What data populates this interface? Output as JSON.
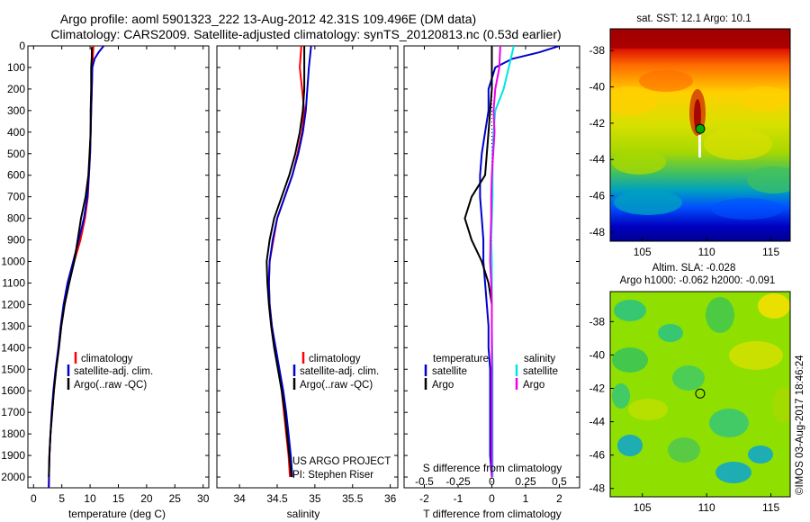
{
  "header": {
    "title_line1": "Argo profile: aoml 5901323_222 13-Aug-2012 42.31S 109.496E (DM data)",
    "title_line2": "Climatology: CARS2009. Satellite-adjusted climatology: synTS_20120813.nc (0.53d earlier)"
  },
  "footer": {
    "project": "US ARGO PROJECT",
    "pi": "PI: Stephen Riser",
    "stamp": "©IMOS 03-Aug-2017 18:46:24"
  },
  "colors": {
    "climatology": "#ff0000",
    "satellite": "#0000cc",
    "argo": "#000000",
    "satellite_salinity": "#00e5e5",
    "argo_salinity": "#ee00ee",
    "marker": "#00aa00"
  },
  "chart_data": [
    {
      "id": "temperature",
      "type": "line",
      "xlabel": "temperature (deg C)",
      "xlim": [
        -1,
        31
      ],
      "xticks": [
        0,
        5,
        10,
        15,
        20,
        25,
        30
      ],
      "ylim": [
        2050,
        0
      ],
      "yticks": [
        0,
        100,
        200,
        300,
        400,
        500,
        600,
        700,
        800,
        900,
        1000,
        1100,
        1200,
        1300,
        1400,
        1500,
        1600,
        1700,
        1800,
        1900,
        2000
      ],
      "legend": [
        "climatology",
        "satellite-adj. clim.",
        "Argo(..raw -QC)"
      ],
      "legend_position": "lower-right",
      "series": [
        {
          "name": "climatology",
          "color_key": "climatology",
          "points": [
            [
              10.6,
              0
            ],
            [
              10.5,
              50
            ],
            [
              10.4,
              100
            ],
            [
              10.3,
              200
            ],
            [
              10.2,
              300
            ],
            [
              10.1,
              400
            ],
            [
              10.0,
              500
            ],
            [
              9.8,
              600
            ],
            [
              9.6,
              700
            ],
            [
              9.1,
              800
            ],
            [
              8.3,
              900
            ],
            [
              7.2,
              1000
            ],
            [
              6.2,
              1100
            ],
            [
              5.5,
              1200
            ],
            [
              4.9,
              1300
            ],
            [
              4.5,
              1400
            ],
            [
              4.0,
              1500
            ],
            [
              3.6,
              1600
            ],
            [
              3.3,
              1700
            ],
            [
              3.0,
              1800
            ],
            [
              2.8,
              1900
            ],
            [
              2.7,
              2050
            ]
          ]
        },
        {
          "name": "satellite-adj. clim.",
          "color_key": "satellite",
          "points": [
            [
              12.4,
              0
            ],
            [
              11.5,
              30
            ],
            [
              10.8,
              60
            ],
            [
              10.4,
              100
            ],
            [
              10.3,
              200
            ],
            [
              10.2,
              300
            ],
            [
              10.1,
              400
            ],
            [
              10.0,
              500
            ],
            [
              9.8,
              600
            ],
            [
              9.5,
              700
            ],
            [
              8.9,
              800
            ],
            [
              8.0,
              900
            ],
            [
              7.0,
              1000
            ],
            [
              6.0,
              1100
            ],
            [
              5.3,
              1200
            ],
            [
              4.8,
              1300
            ],
            [
              4.4,
              1400
            ],
            [
              3.9,
              1500
            ],
            [
              3.5,
              1600
            ],
            [
              3.2,
              1700
            ],
            [
              3.0,
              1800
            ],
            [
              2.8,
              1900
            ],
            [
              2.7,
              2050
            ]
          ]
        },
        {
          "name": "Argo(..raw -QC)",
          "color_key": "argo",
          "points": [
            [
              10.3,
              5
            ],
            [
              10.3,
              50
            ],
            [
              10.2,
              100
            ],
            [
              10.2,
              200
            ],
            [
              10.1,
              300
            ],
            [
              10.1,
              400
            ],
            [
              9.9,
              500
            ],
            [
              9.7,
              600
            ],
            [
              9.2,
              700
            ],
            [
              8.4,
              800
            ],
            [
              7.8,
              900
            ],
            [
              7.2,
              1000
            ],
            [
              6.3,
              1100
            ],
            [
              5.5,
              1200
            ],
            [
              4.9,
              1300
            ],
            [
              4.5,
              1400
            ],
            [
              4.0,
              1500
            ],
            [
              3.6,
              1600
            ],
            [
              3.3,
              1700
            ],
            [
              3.0,
              1800
            ],
            [
              2.8,
              1900
            ],
            [
              2.7,
              2000
            ]
          ]
        }
      ]
    },
    {
      "id": "salinity",
      "type": "line",
      "xlabel": "salinity",
      "xlim": [
        33.7,
        36.1
      ],
      "xticks": [
        34,
        34.5,
        35,
        35.5,
        36
      ],
      "ylim": [
        2050,
        0
      ],
      "legend": [
        "climatology",
        "satellite-adj. clim.",
        "Argo(..raw -QC)"
      ],
      "legend_position": "lower-right",
      "series": [
        {
          "name": "climatology",
          "color_key": "climatology",
          "points": [
            [
              34.82,
              0
            ],
            [
              34.8,
              100
            ],
            [
              34.83,
              200
            ],
            [
              34.86,
              300
            ],
            [
              34.83,
              400
            ],
            [
              34.77,
              500
            ],
            [
              34.7,
              600
            ],
            [
              34.6,
              700
            ],
            [
              34.5,
              800
            ],
            [
              34.45,
              900
            ],
            [
              34.4,
              1000
            ],
            [
              34.39,
              1100
            ],
            [
              34.4,
              1200
            ],
            [
              34.43,
              1300
            ],
            [
              34.47,
              1400
            ],
            [
              34.52,
              1500
            ],
            [
              34.56,
              1600
            ],
            [
              34.59,
              1700
            ],
            [
              34.62,
              1800
            ],
            [
              34.65,
              1900
            ],
            [
              34.67,
              2000
            ]
          ]
        },
        {
          "name": "satellite-adj. clim.",
          "color_key": "satellite",
          "points": [
            [
              34.95,
              0
            ],
            [
              34.92,
              100
            ],
            [
              34.9,
              200
            ],
            [
              34.88,
              300
            ],
            [
              34.84,
              400
            ],
            [
              34.78,
              500
            ],
            [
              34.7,
              600
            ],
            [
              34.6,
              700
            ],
            [
              34.5,
              800
            ],
            [
              34.44,
              900
            ],
            [
              34.4,
              1000
            ],
            [
              34.39,
              1100
            ],
            [
              34.4,
              1200
            ],
            [
              34.43,
              1300
            ],
            [
              34.48,
              1400
            ],
            [
              34.53,
              1500
            ],
            [
              34.58,
              1600
            ],
            [
              34.62,
              1700
            ],
            [
              34.65,
              1800
            ],
            [
              34.68,
              1900
            ],
            [
              34.7,
              2000
            ]
          ]
        },
        {
          "name": "Argo(..raw -QC)",
          "color_key": "argo",
          "points": [
            [
              34.86,
              0
            ],
            [
              34.86,
              100
            ],
            [
              34.86,
              200
            ],
            [
              34.84,
              300
            ],
            [
              34.8,
              400
            ],
            [
              34.74,
              500
            ],
            [
              34.66,
              600
            ],
            [
              34.56,
              700
            ],
            [
              34.46,
              800
            ],
            [
              34.4,
              900
            ],
            [
              34.36,
              1000
            ],
            [
              34.37,
              1100
            ],
            [
              34.39,
              1200
            ],
            [
              34.42,
              1300
            ],
            [
              34.46,
              1400
            ],
            [
              34.51,
              1500
            ],
            [
              34.56,
              1600
            ],
            [
              34.6,
              1700
            ],
            [
              34.63,
              1800
            ],
            [
              34.66,
              1900
            ],
            [
              34.69,
              2000
            ]
          ]
        }
      ]
    },
    {
      "id": "difference",
      "type": "line",
      "xlabel": "T difference from climatology",
      "xlabel_top": "S difference from climatology",
      "xlim": [
        -2.6,
        2.6
      ],
      "xticks": [
        -2,
        -1,
        0,
        1,
        2
      ],
      "xticks_s": [
        -0.5,
        -0.25,
        0,
        0.25,
        0.5
      ],
      "ylim": [
        2050,
        0
      ],
      "legend": {
        "temperature_title": "temperature",
        "salinity_title": "salinity",
        "satellite": "satellite",
        "argo": "Argo"
      },
      "series": [
        {
          "name": "temperature satellite",
          "color_key": "satellite",
          "points": [
            [
              2.0,
              0
            ],
            [
              1.4,
              30
            ],
            [
              0.6,
              60
            ],
            [
              0.1,
              100
            ],
            [
              -0.1,
              200
            ],
            [
              -0.1,
              300
            ],
            [
              -0.2,
              400
            ],
            [
              -0.3,
              500
            ],
            [
              -0.35,
              600
            ],
            [
              -0.35,
              700
            ],
            [
              -0.3,
              800
            ],
            [
              -0.25,
              900
            ],
            [
              -0.25,
              1000
            ],
            [
              -0.2,
              1100
            ],
            [
              -0.15,
              1200
            ],
            [
              -0.1,
              1300
            ],
            [
              -0.1,
              1400
            ],
            [
              -0.05,
              1500
            ],
            [
              -0.05,
              1700
            ],
            [
              -0.05,
              1900
            ],
            [
              0,
              2000
            ]
          ]
        },
        {
          "name": "temperature Argo",
          "color_key": "argo",
          "points": [
            [
              0,
              0
            ],
            [
              0,
              100
            ],
            [
              0,
              200
            ],
            [
              -0.05,
              300
            ],
            [
              -0.1,
              400
            ],
            [
              -0.15,
              500
            ],
            [
              -0.2,
              600
            ],
            [
              -0.6,
              700
            ],
            [
              -0.8,
              800
            ],
            [
              -0.6,
              900
            ],
            [
              -0.3,
              1000
            ],
            [
              -0.1,
              1100
            ],
            [
              0,
              1200
            ],
            [
              0,
              1300
            ],
            [
              0,
              1400
            ],
            [
              0,
              1500
            ],
            [
              0,
              1600
            ],
            [
              0,
              1700
            ],
            [
              0,
              1800
            ],
            [
              0,
              1900
            ],
            [
              0,
              2000
            ]
          ]
        },
        {
          "name": "salinity satellite",
          "color_key": "satellite_salinity",
          "points": [
            [
              0.65,
              0
            ],
            [
              0.5,
              100
            ],
            [
              0.35,
              200
            ],
            [
              0.1,
              300
            ],
            [
              0.05,
              400
            ],
            [
              0.02,
              500
            ],
            [
              0.02,
              600
            ],
            [
              0.02,
              700
            ],
            [
              0.0,
              800
            ],
            [
              -0.02,
              900
            ],
            [
              0,
              1000
            ],
            [
              0,
              1100
            ],
            [
              0,
              1300
            ],
            [
              0.02,
              1500
            ],
            [
              0.02,
              1700
            ],
            [
              0.02,
              1900
            ],
            [
              0.02,
              2000
            ]
          ]
        },
        {
          "name": "salinity Argo",
          "color_key": "argo_salinity",
          "points": [
            [
              0.25,
              0
            ],
            [
              0.22,
              100
            ],
            [
              0.1,
              200
            ],
            [
              0.05,
              300
            ],
            [
              0.08,
              400
            ],
            [
              0.04,
              500
            ],
            [
              0,
              600
            ],
            [
              -0.02,
              700
            ],
            [
              -0.02,
              800
            ],
            [
              -0.04,
              900
            ],
            [
              -0.05,
              1000
            ],
            [
              -0.02,
              1100
            ],
            [
              0,
              1200
            ],
            [
              0,
              1300
            ],
            [
              0,
              1400
            ],
            [
              0,
              1500
            ],
            [
              0,
              1600
            ],
            [
              0,
              1700
            ],
            [
              0,
              1800
            ],
            [
              0,
              1900
            ],
            [
              0,
              2000
            ]
          ]
        }
      ]
    },
    {
      "id": "sst_map",
      "type": "heatmap",
      "title": "sat. SST: 12.1  Argo: 10.1",
      "xlim": [
        102.5,
        116.5
      ],
      "ylim": [
        -48.5,
        -36.8
      ],
      "xticks": [
        105,
        110,
        115
      ],
      "yticks": [
        -38,
        -40,
        -42,
        -44,
        -46,
        -48
      ],
      "marker": {
        "lon": 109.496,
        "lat": -42.31
      }
    },
    {
      "id": "sla_map",
      "type": "heatmap",
      "title": "Altim. SLA: -0.028",
      "subtitle": "Argo h1000: -0.062 h2000: -0.091",
      "xlim": [
        102.5,
        116.5
      ],
      "ylim": [
        -48.5,
        -36.2
      ],
      "xticks": [
        105,
        110,
        115
      ],
      "yticks": [
        -38,
        -40,
        -42,
        -44,
        -46,
        -48
      ],
      "marker": {
        "lon": 109.496,
        "lat": -42.31
      }
    }
  ]
}
